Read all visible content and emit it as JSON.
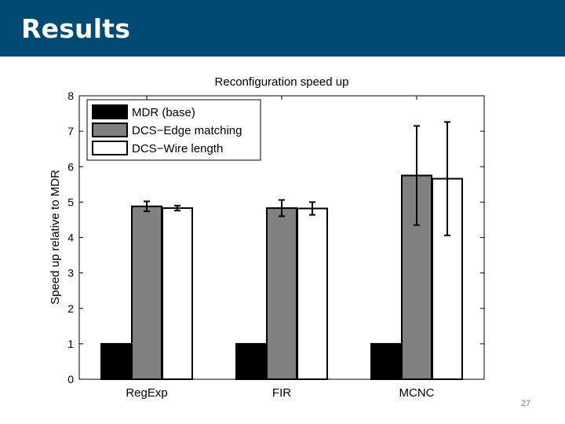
{
  "slide": {
    "title": "Results",
    "page_number": "27",
    "header_color": "#004a73"
  },
  "chart_data": {
    "type": "bar",
    "title": "Reconfiguration speed up",
    "xlabel": "",
    "ylabel": "Speed up relative to MDR",
    "categories": [
      "RegExp",
      "FIR",
      "MCNC"
    ],
    "ylim": [
      0,
      8
    ],
    "yticks": [
      "0",
      "1",
      "2",
      "3",
      "4",
      "5",
      "6",
      "7",
      "8"
    ],
    "grid": false,
    "legend_position": "top-left",
    "series": [
      {
        "name": "MDR (base)",
        "color": "#000000",
        "values": [
          1,
          1,
          1
        ],
        "errors": [
          null,
          null,
          null
        ]
      },
      {
        "name": "DCS−Edge matching",
        "color": "#808080",
        "values": [
          4.88,
          4.83,
          5.75
        ],
        "errors": [
          0.14,
          0.23,
          1.4
        ]
      },
      {
        "name": "DCS−Wire length",
        "color": "#ffffff",
        "values": [
          4.83,
          4.82,
          5.66
        ],
        "errors": [
          0.07,
          0.18,
          1.6
        ]
      }
    ]
  }
}
